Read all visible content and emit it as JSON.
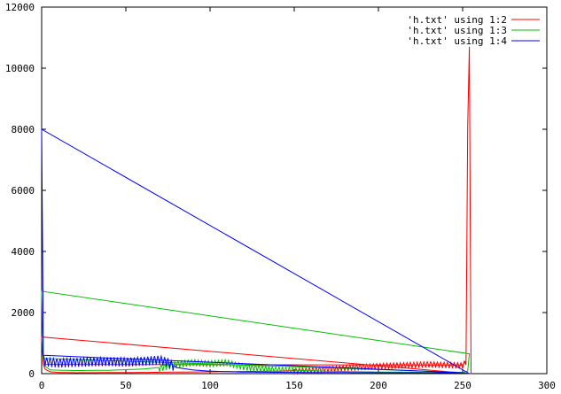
{
  "chart_data": {
    "type": "line",
    "xlim": [
      0,
      300
    ],
    "ylim": [
      0,
      12000
    ],
    "x_ticks": [
      "0",
      "50",
      "100",
      "150",
      "200",
      "250",
      "300"
    ],
    "y_ticks": [
      "0",
      "2000",
      "4000",
      "6000",
      "8000",
      "10000",
      "12000"
    ],
    "grid": false,
    "legend_position": "top-right",
    "series": [
      {
        "name": "'h.txt' using 1:2",
        "color": "#ff0000",
        "points": [
          [
            0,
            1200
          ],
          [
            1,
            300
          ],
          [
            2,
            150
          ],
          [
            5,
            60
          ],
          [
            10,
            40
          ],
          [
            20,
            30
          ],
          [
            40,
            35
          ],
          [
            60,
            40
          ],
          [
            80,
            50
          ],
          [
            100,
            60
          ],
          [
            120,
            70
          ],
          [
            140,
            80
          ],
          [
            150,
            100
          ],
          [
            160,
            120
          ],
          [
            170,
            160
          ],
          [
            180,
            200
          ],
          [
            190,
            230
          ],
          [
            200,
            260
          ],
          [
            210,
            280
          ],
          [
            220,
            300
          ],
          [
            230,
            320
          ],
          [
            240,
            300
          ],
          [
            250,
            280
          ],
          [
            252,
            400
          ],
          [
            253,
            8000
          ],
          [
            254,
            10700
          ],
          [
            255,
            0
          ]
        ],
        "oscillation": {
          "from": 150,
          "to": 253,
          "amplitude": 120
        }
      },
      {
        "name": "'h.txt' using 1:3",
        "color": "#00c000",
        "points": [
          [
            0,
            2700
          ],
          [
            1,
            500
          ],
          [
            2,
            250
          ],
          [
            5,
            120
          ],
          [
            20,
            100
          ],
          [
            40,
            110
          ],
          [
            60,
            150
          ],
          [
            70,
            200
          ],
          [
            80,
            320
          ],
          [
            90,
            380
          ],
          [
            100,
            340
          ],
          [
            110,
            380
          ],
          [
            115,
            300
          ],
          [
            120,
            240
          ],
          [
            130,
            180
          ],
          [
            140,
            140
          ],
          [
            150,
            110
          ],
          [
            170,
            80
          ],
          [
            190,
            60
          ],
          [
            210,
            50
          ],
          [
            230,
            40
          ],
          [
            250,
            40
          ],
          [
            253,
            80
          ],
          [
            254,
            650
          ]
        ],
        "oscillation": {
          "from": 70,
          "to": 150,
          "amplitude": 130
        }
      },
      {
        "name": "'h.txt' using 1:4",
        "color": "#0000ff",
        "points": [
          [
            0,
            8000
          ],
          [
            1,
            600
          ],
          [
            2,
            420
          ],
          [
            5,
            400
          ],
          [
            10,
            380
          ],
          [
            20,
            400
          ],
          [
            30,
            420
          ],
          [
            40,
            430
          ],
          [
            50,
            410
          ],
          [
            60,
            440
          ],
          [
            70,
            480
          ],
          [
            75,
            400
          ],
          [
            80,
            200
          ],
          [
            90,
            120
          ],
          [
            100,
            80
          ],
          [
            120,
            50
          ],
          [
            150,
            40
          ],
          [
            200,
            30
          ],
          [
            250,
            30
          ],
          [
            254,
            0
          ]
        ],
        "oscillation": {
          "from": 2,
          "to": 78,
          "amplitude": 180
        }
      }
    ]
  }
}
